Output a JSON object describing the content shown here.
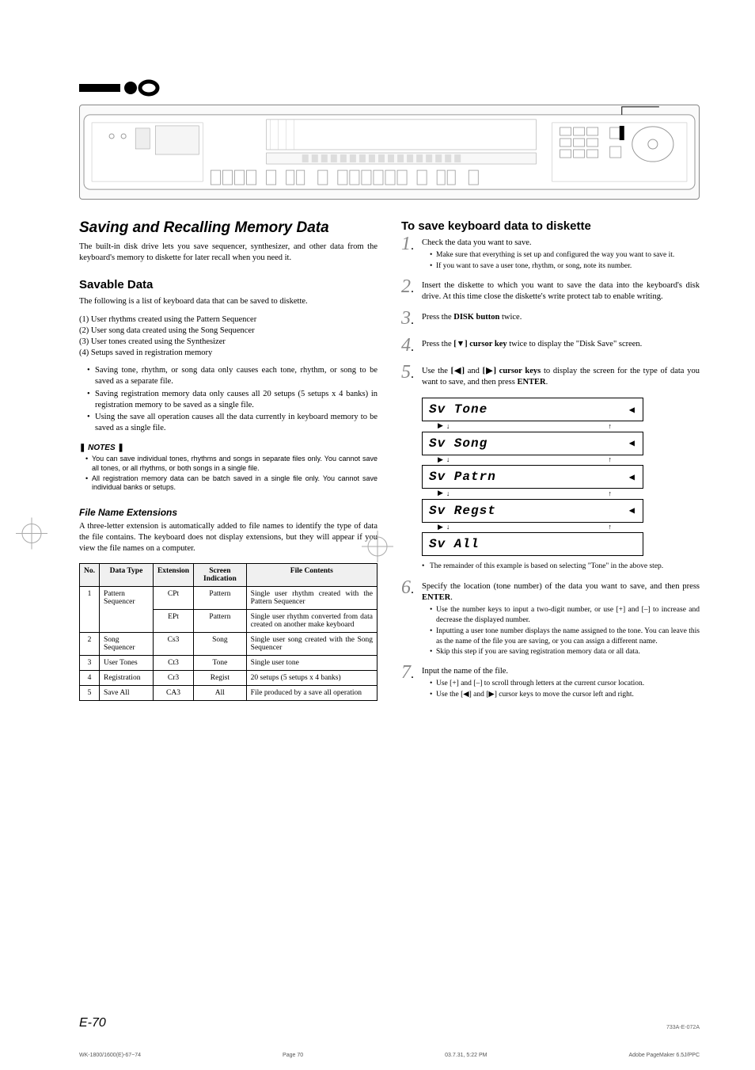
{
  "page": {
    "number": "E-70",
    "footer_code": "733A-E-072A",
    "footer_file": "WK-1800/1600(E)-67~74",
    "footer_page": "Page 70",
    "footer_date": "03.7.31, 5:22 PM",
    "footer_app": "Adobe PageMaker 6.5J/PPC"
  },
  "left": {
    "title": "Saving and Recalling Memory Data",
    "intro": "The built-in disk drive lets you save sequencer, synthesizer, and other data from the keyboard's memory to diskette for later recall when you need it.",
    "savable_header": "Savable Data",
    "savable_intro": "The following is a list of keyboard data that can be saved to diskette.",
    "savable_items": [
      "(1) User rhythms created using the Pattern Sequencer",
      "(2) User song data created using the Song Sequencer",
      "(3) User tones created using the Synthesizer",
      "(4) Setups saved in registration memory"
    ],
    "savable_bullets": [
      "Saving tone, rhythm, or song data only causes each tone, rhythm, or song to be saved as a separate file.",
      "Saving registration memory data only causes all 20 setups (5 setups x 4 banks) in registration memory to be saved as a single file.",
      "Using the save all operation causes all the data currently in keyboard memory to be saved as a single file."
    ],
    "notes_label": "NOTES",
    "notes": [
      "You can save individual tones, rhythms and songs in separate files only. You cannot save all tones, or all rhythms, or both songs in a single file.",
      "All registration memory data can be batch saved in a single file only. You cannot save individual banks or setups."
    ],
    "file_ext_header": "File Name Extensions",
    "file_ext_intro": "A three-letter extension is automatically added to file names to identify the type of data the file contains. The keyboard does not display extensions, but they will appear if you view the file names on a computer.",
    "table": {
      "headers": [
        "No.",
        "Data Type",
        "Extension",
        "Screen Indication",
        "File Contents"
      ],
      "rows": [
        {
          "no": "1",
          "type": "Pattern Sequencer",
          "ext": "CPt",
          "screen": "Pattern",
          "contents": "Single user rhythm created with the Pattern Sequencer",
          "rowspan_type": 2
        },
        {
          "no": "",
          "type": "",
          "ext": "EPt",
          "screen": "Pattern",
          "contents": "Single user rhythm converted from data created on another make keyboard"
        },
        {
          "no": "2",
          "type": "Song Sequencer",
          "ext": "Cs3",
          "screen": "Song",
          "contents": "Single user song created with the Song Sequencer"
        },
        {
          "no": "3",
          "type": "User Tones",
          "ext": "Ct3",
          "screen": "Tone",
          "contents": "Single user tone"
        },
        {
          "no": "4",
          "type": "Registration",
          "ext": "Cr3",
          "screen": "Regist",
          "contents": "20 setups (5 setups x 4 banks)"
        },
        {
          "no": "5",
          "type": "Save All",
          "ext": "CA3",
          "screen": "All",
          "contents": "File produced by a save all operation"
        }
      ]
    }
  },
  "right": {
    "title": "To save keyboard data to diskette",
    "steps": [
      {
        "n": "1",
        "main": "Check the data you want to save.",
        "sub": [
          "Make sure that everything is set up and configured the way you want to save it.",
          "If you want to save a user tone, rhythm, or song, note its number."
        ]
      },
      {
        "n": "2",
        "main": "Insert the diskette to which you want to save the data into the keyboard's disk drive. At this time close the diskette's write protect tab to enable writing."
      },
      {
        "n": "3",
        "main_html": "Press the <b>DISK button</b> twice."
      },
      {
        "n": "4",
        "main_html": "Press the <b>[▼] cursor key</b> twice to display the \"Disk Save\" screen."
      },
      {
        "n": "5",
        "main_html": "Use the <b>[◀]</b> and <b>[▶] cursor keys</b> to display the screen for the type of data you want to save, and then press <b>ENTER</b>."
      }
    ],
    "lcd": [
      "Sv Tone",
      "Sv Song",
      "Sv Patrn",
      "Sv Regst",
      "Sv All"
    ],
    "after_lcd_bullet": "The remainder of this example is based on selecting \"Tone\" in the above step.",
    "steps2": [
      {
        "n": "6",
        "main_html": "Specify the location (tone number) of the data you want to save, and then press <b>ENTER</b>.",
        "sub": [
          "Use the number keys to input a two-digit number, or use [+] and [–] to increase and decrease the displayed number.",
          "Inputting a user tone number displays the name assigned to the tone. You can leave this as the name of the file you are saving, or you can assign a different name.",
          "Skip this step if you are saving registration memory data or all data."
        ]
      },
      {
        "n": "7",
        "main": "Input the name of the file.",
        "sub": [
          "Use [+] and [–] to scroll through letters at the current cursor location.",
          "Use the [◀] and [▶] cursor keys to move the cursor left and right."
        ]
      }
    ]
  },
  "colors": {
    "step_num": "#888888",
    "text": "#000000",
    "bg": "#ffffff"
  }
}
